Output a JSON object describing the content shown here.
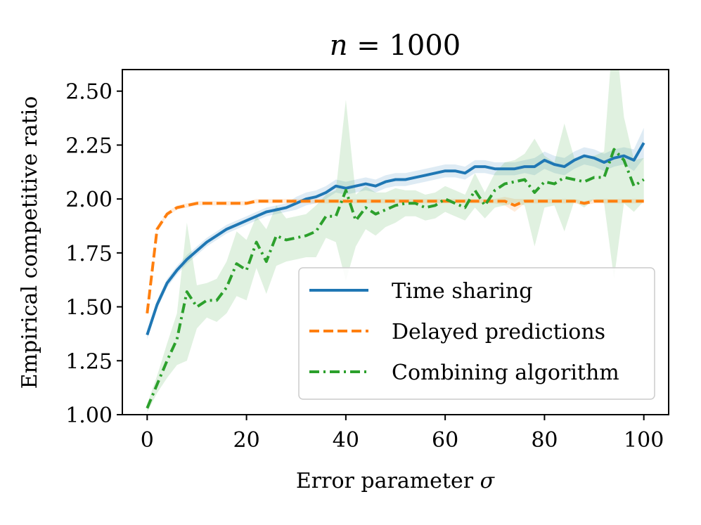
{
  "chart_data": {
    "type": "line",
    "title": "n = 1000",
    "title_var": "n",
    "title_rest": " = 1000",
    "xlabel": "Error parameter",
    "xlabel_symbol": "σ",
    "ylabel": "Empirical competitive ratio",
    "xlim": [
      -5,
      105
    ],
    "ylim": [
      1.0,
      2.6
    ],
    "x_ticks": [
      0,
      20,
      40,
      60,
      80,
      100
    ],
    "x_tick_labels": [
      "0",
      "20",
      "40",
      "60",
      "80",
      "100"
    ],
    "y_ticks": [
      1.0,
      1.25,
      1.5,
      1.75,
      2.0,
      2.25,
      2.5
    ],
    "y_tick_labels": [
      "1.00",
      "1.25",
      "1.50",
      "1.75",
      "2.00",
      "2.25",
      "2.50"
    ],
    "legend_position": "lower-right",
    "x": [
      0,
      2,
      4,
      6,
      8,
      10,
      12,
      14,
      16,
      18,
      20,
      22,
      24,
      26,
      28,
      30,
      32,
      34,
      36,
      38,
      40,
      42,
      44,
      46,
      48,
      50,
      52,
      54,
      56,
      58,
      60,
      62,
      64,
      66,
      68,
      70,
      72,
      74,
      76,
      78,
      80,
      82,
      84,
      86,
      88,
      90,
      92,
      94,
      96,
      98,
      100
    ],
    "series": [
      {
        "name": "Time sharing",
        "color": "#1f77b4",
        "dash": "solid",
        "values": [
          1.37,
          1.51,
          1.61,
          1.67,
          1.72,
          1.76,
          1.8,
          1.83,
          1.86,
          1.88,
          1.9,
          1.92,
          1.94,
          1.95,
          1.96,
          1.98,
          2.0,
          2.01,
          2.03,
          2.06,
          2.05,
          2.06,
          2.07,
          2.06,
          2.08,
          2.09,
          2.09,
          2.1,
          2.11,
          2.12,
          2.13,
          2.13,
          2.12,
          2.15,
          2.15,
          2.14,
          2.14,
          2.14,
          2.15,
          2.15,
          2.18,
          2.16,
          2.15,
          2.18,
          2.2,
          2.19,
          2.17,
          2.19,
          2.2,
          2.18,
          2.26
        ],
        "band": [
          0.02,
          0.02,
          0.02,
          0.02,
          0.02,
          0.02,
          0.02,
          0.02,
          0.02,
          0.02,
          0.02,
          0.02,
          0.02,
          0.02,
          0.02,
          0.03,
          0.03,
          0.03,
          0.03,
          0.03,
          0.03,
          0.03,
          0.03,
          0.03,
          0.03,
          0.03,
          0.03,
          0.03,
          0.03,
          0.03,
          0.03,
          0.03,
          0.03,
          0.03,
          0.03,
          0.03,
          0.03,
          0.03,
          0.03,
          0.04,
          0.04,
          0.04,
          0.04,
          0.04,
          0.04,
          0.04,
          0.04,
          0.04,
          0.04,
          0.05,
          0.07
        ]
      },
      {
        "name": "Delayed predictions",
        "color": "#ff7f0e",
        "dash": "dashed",
        "values": [
          1.47,
          1.86,
          1.93,
          1.96,
          1.97,
          1.98,
          1.98,
          1.98,
          1.98,
          1.98,
          1.98,
          1.99,
          1.99,
          1.99,
          1.99,
          1.99,
          1.99,
          1.99,
          1.99,
          1.99,
          1.99,
          1.99,
          1.99,
          1.99,
          1.99,
          1.99,
          1.99,
          1.99,
          1.99,
          1.99,
          1.99,
          1.99,
          1.99,
          1.99,
          1.99,
          1.99,
          1.99,
          1.97,
          1.99,
          1.99,
          1.99,
          1.99,
          1.99,
          1.99,
          1.98,
          1.99,
          1.99,
          1.99,
          1.99,
          1.99,
          1.99
        ],
        "band": [
          0.01,
          0.01,
          0.01,
          0.01,
          0.01,
          0.01,
          0.01,
          0.01,
          0.01,
          0.01,
          0.01,
          0.01,
          0.01,
          0.01,
          0.01,
          0.01,
          0.01,
          0.01,
          0.01,
          0.01,
          0.01,
          0.01,
          0.01,
          0.01,
          0.01,
          0.01,
          0.01,
          0.01,
          0.01,
          0.01,
          0.01,
          0.01,
          0.01,
          0.01,
          0.01,
          0.01,
          0.02,
          0.03,
          0.01,
          0.01,
          0.01,
          0.01,
          0.01,
          0.01,
          0.01,
          0.01,
          0.01,
          0.01,
          0.01,
          0.01,
          0.01
        ]
      },
      {
        "name": "Combining algorithm",
        "color": "#2ca02c",
        "dash": "dashdot",
        "values": [
          1.03,
          1.14,
          1.25,
          1.35,
          1.57,
          1.5,
          1.53,
          1.53,
          1.59,
          1.7,
          1.67,
          1.8,
          1.71,
          1.83,
          1.81,
          1.82,
          1.83,
          1.85,
          1.92,
          1.92,
          2.04,
          1.9,
          1.96,
          1.93,
          1.95,
          1.97,
          1.98,
          1.98,
          1.96,
          1.97,
          2.0,
          1.98,
          1.96,
          2.04,
          1.97,
          2.04,
          2.07,
          2.08,
          2.09,
          2.03,
          2.08,
          2.07,
          2.1,
          2.09,
          2.08,
          2.1,
          2.1,
          2.23,
          2.18,
          2.06,
          2.09
        ],
        "band": [
          0.02,
          0.04,
          0.08,
          0.12,
          0.32,
          0.1,
          0.08,
          0.1,
          0.12,
          0.15,
          0.14,
          0.12,
          0.15,
          0.14,
          0.1,
          0.1,
          0.1,
          0.12,
          0.1,
          0.12,
          0.42,
          0.12,
          0.1,
          0.1,
          0.08,
          0.08,
          0.06,
          0.06,
          0.06,
          0.06,
          0.06,
          0.06,
          0.06,
          0.08,
          0.06,
          0.08,
          0.1,
          0.1,
          0.12,
          0.25,
          0.12,
          0.1,
          0.25,
          0.1,
          0.12,
          0.1,
          0.12,
          0.6,
          0.2,
          0.12,
          0.1
        ]
      }
    ]
  }
}
